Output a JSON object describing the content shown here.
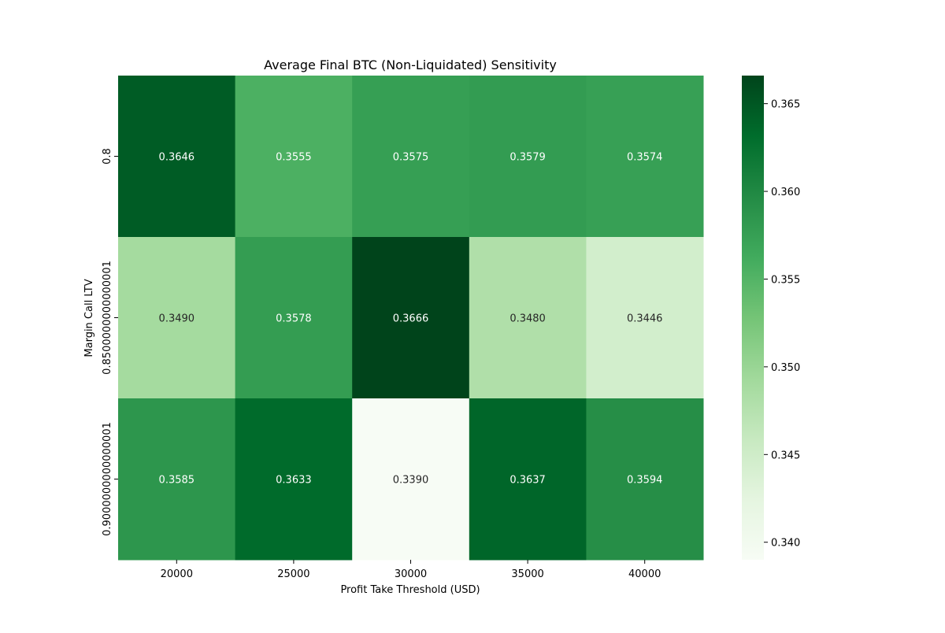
{
  "chart_data": {
    "type": "heatmap",
    "title": "Average Final BTC (Non-Liquidated) Sensitivity",
    "xlabel": "Profit Take Threshold (USD)",
    "ylabel": "Margin Call LTV",
    "x_categories": [
      "20000",
      "25000",
      "30000",
      "35000",
      "40000"
    ],
    "y_categories": [
      "0.8",
      "0.8500000000000001",
      "0.9000000000000001"
    ],
    "values": [
      [
        0.3646,
        0.3555,
        0.3575,
        0.3579,
        0.3574
      ],
      [
        0.349,
        0.3578,
        0.3666,
        0.348,
        0.3446
      ],
      [
        0.3585,
        0.3633,
        0.339,
        0.3637,
        0.3594
      ]
    ],
    "value_labels": [
      [
        "0.3646",
        "0.3555",
        "0.3575",
        "0.3579",
        "0.3574"
      ],
      [
        "0.3490",
        "0.3578",
        "0.3666",
        "0.3480",
        "0.3446"
      ],
      [
        "0.3585",
        "0.3633",
        "0.3390",
        "0.3637",
        "0.3594"
      ]
    ],
    "colormap": "Greens",
    "colorbar": {
      "range": [
        0.339,
        0.3666
      ],
      "ticks": [
        0.34,
        0.345,
        0.35,
        0.355,
        0.36,
        0.365
      ],
      "tick_labels": [
        "0.340",
        "0.345",
        "0.350",
        "0.355",
        "0.360",
        "0.365"
      ]
    },
    "grid": false
  }
}
